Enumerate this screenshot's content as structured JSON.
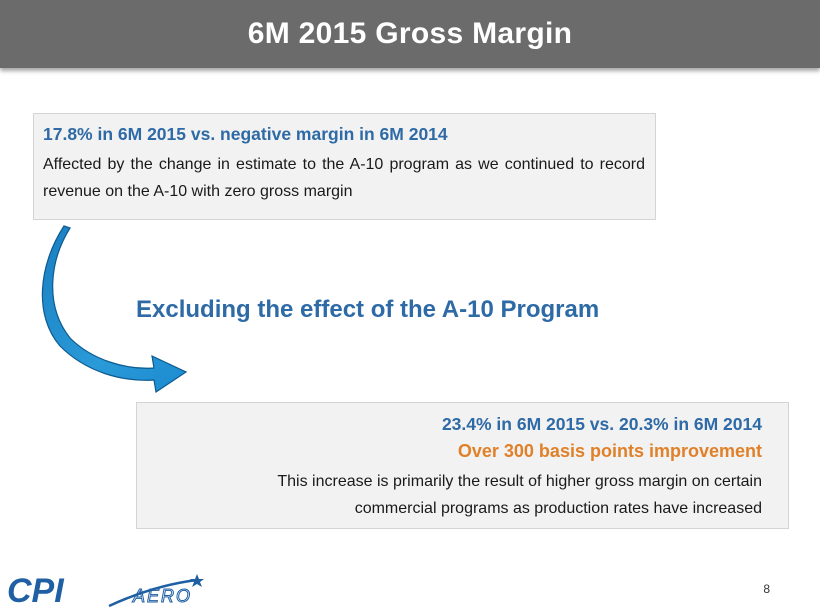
{
  "slide": {
    "title": "6M 2015 Gross Margin",
    "page_number": "8"
  },
  "box1": {
    "heading": "17.8% in 6M 2015 vs. negative margin in 6M 2014",
    "body": "Affected by the change in estimate to the A-10 program as we continued to record revenue on the A-10 with zero gross margin"
  },
  "subheading": "Excluding the effect of the A-10 Program",
  "box2": {
    "line1": "23.4% in 6M 2015 vs. 20.3% in 6M 2014",
    "line2": "Over 300 basis points improvement",
    "body_line1": "This increase is primarily the result of higher gross margin on certain",
    "body_line2": "commercial programs as production rates have increased"
  },
  "logo": {
    "primary_text": "CPI",
    "secondary_text": "AERO"
  },
  "colors": {
    "title_bar": "#6b6b6b",
    "accent_blue": "#2e6aa6",
    "accent_orange": "#e0812a",
    "box_fill": "#f2f2f2",
    "arrow_blue": "#1f87c9"
  },
  "icons": {
    "curved_arrow": "curved-arrow-icon",
    "logo_star": "star-icon"
  }
}
